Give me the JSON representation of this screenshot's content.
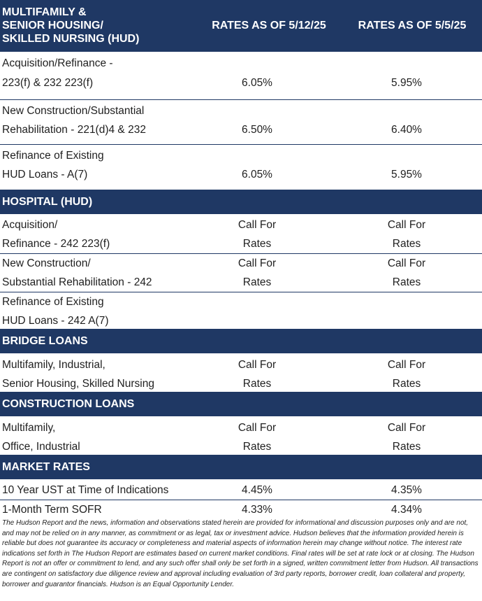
{
  "header": {
    "title_lines": [
      "MULTIFAMILY &",
      "SENIOR HOUSING/",
      "SKILLED NURSING (HUD)"
    ],
    "col1": "RATES AS OF 5/12/25",
    "col2": "RATES AS OF 5/5/25"
  },
  "sections": {
    "multifamily": {
      "rows": [
        {
          "label": [
            "Acquisition/Refinance -",
            "223(f) & 232 223(f)"
          ],
          "v1": [
            "",
            "6.05%"
          ],
          "v2": [
            "",
            "5.95%"
          ]
        },
        {
          "label": [
            "New Construction/Substantial",
            "Rehabilitation - 221(d)4 & 232"
          ],
          "v1": [
            "",
            "6.50%"
          ],
          "v2": [
            "",
            "6.40%"
          ]
        },
        {
          "label": [
            "Refinance of Existing",
            "HUD Loans - A(7)"
          ],
          "v1": [
            "",
            "6.05%"
          ],
          "v2": [
            "",
            "5.95%"
          ]
        }
      ]
    },
    "hospital": {
      "title": "HOSPITAL (HUD)",
      "rows": [
        {
          "label": [
            "Acquisition/",
            "Refinance - 242 223(f)"
          ],
          "v1": [
            "Call For",
            "Rates"
          ],
          "v2": [
            "Call For",
            "Rates"
          ]
        },
        {
          "label": [
            "New Construction/",
            "Substantial Rehabilitation - 242"
          ],
          "v1": [
            "Call For",
            "Rates"
          ],
          "v2": [
            "Call For",
            "Rates"
          ]
        },
        {
          "label": [
            "Refinance of Existing",
            "HUD Loans - 242 A(7)"
          ],
          "v1": [
            "",
            ""
          ],
          "v2": [
            "",
            ""
          ]
        }
      ]
    },
    "bridge": {
      "title": "BRIDGE LOANS",
      "rows": [
        {
          "label": [
            "Multifamily, Industrial,",
            "Senior Housing, Skilled Nursing"
          ],
          "v1": [
            "Call For",
            "Rates"
          ],
          "v2": [
            "Call For",
            "Rates"
          ]
        }
      ]
    },
    "construction": {
      "title": "CONSTRUCTION LOANS",
      "rows": [
        {
          "label": [
            "Multifamily,",
            "Office, Industrial"
          ],
          "v1": [
            "Call For",
            "Rates"
          ],
          "v2": [
            "Call For",
            "Rates"
          ]
        }
      ]
    },
    "market": {
      "title": "MARKET RATES",
      "rows": [
        {
          "label": [
            "10 Year UST at Time of Indications"
          ],
          "v1": [
            "4.45%"
          ],
          "v2": [
            "4.35%"
          ]
        },
        {
          "label": [
            "1-Month Term SOFR"
          ],
          "v1": [
            "4.33%"
          ],
          "v2": [
            "4.34%"
          ]
        }
      ]
    }
  },
  "disclaimer": "The Hudson Report and the news, information and observations stated herein are provided for informational and discussion purposes only and are not, and may not be relied on in any manner, as commitment or as legal, tax or investment advice. Hudson believes that the information provided herein is reliable but does not guarantee its accuracy or completeness and material aspects of information herein may change without notice. The interest rate indications set forth in The Hudson Report are estimates based on current market conditions. Final rates will be set at rate lock or at closing. The Hudson Report is not an offer or commitment to lend, and any such offer shall only be set forth in a signed, written commitment letter from Hudson. All transactions are contingent on satisfactory due diligence review and approval including evaluation of 3rd party reports, borrower credit, loan collateral and property, borrower and guarantor financials. Hudson is an Equal Opportunity Lender.",
  "colors": {
    "header_bg": "#1f3864",
    "header_text": "#ffffff",
    "body_text": "#1f1f1f"
  }
}
